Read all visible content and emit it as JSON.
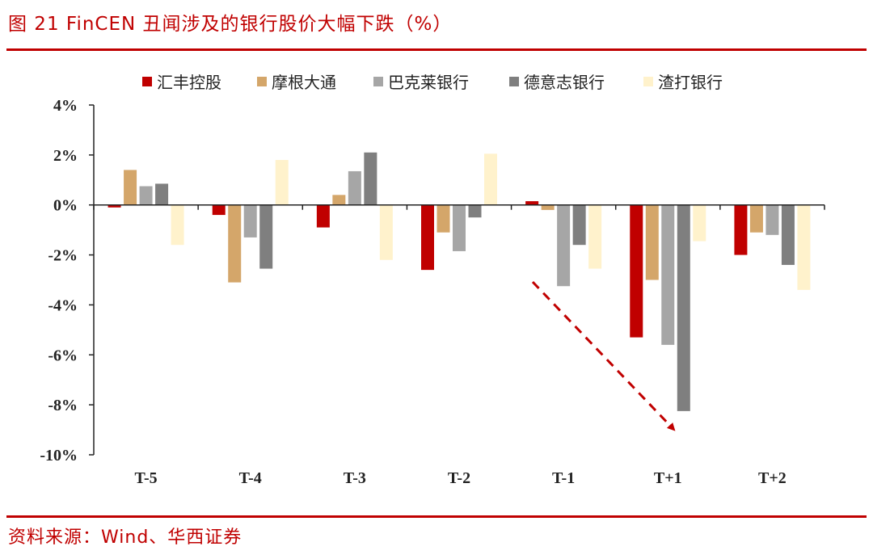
{
  "figure": {
    "title": "图 21  FinCEN 丑闻涉及的银行股价大幅下跌（%）",
    "source": "资料来源：Wind、华西证券"
  },
  "chart_data": {
    "type": "bar",
    "title": "FinCEN 丑闻涉及的银行股价大幅下跌（%）",
    "xlabel": "",
    "ylabel": "",
    "ylim": [
      -10,
      4
    ],
    "yticks": [
      4,
      2,
      0,
      -2,
      -4,
      -6,
      -8,
      -10
    ],
    "ytick_labels": [
      "4%",
      "2%",
      "0%",
      "-2%",
      "-4%",
      "-6%",
      "-8%",
      "-10%"
    ],
    "categories": [
      "T-5",
      "T-4",
      "T-3",
      "T-2",
      "T-1",
      "T+1",
      "T+2"
    ],
    "legend_position": "top",
    "series": [
      {
        "name": "汇丰控股",
        "color": "#c00000",
        "values": [
          -0.1,
          -0.4,
          -0.9,
          -2.6,
          0.15,
          -5.3,
          -2.0
        ]
      },
      {
        "name": "摩根大通",
        "color": "#d4a66a",
        "values": [
          1.4,
          -3.1,
          0.4,
          -1.1,
          -0.2,
          -3.0,
          -1.1
        ]
      },
      {
        "name": "巴克莱银行",
        "color": "#a6a6a6",
        "values": [
          0.75,
          -1.3,
          1.35,
          -1.85,
          -3.25,
          -5.6,
          -1.2
        ]
      },
      {
        "name": "德意志银行",
        "color": "#7f7f7f",
        "values": [
          0.85,
          -2.55,
          2.1,
          -0.5,
          -1.6,
          -8.25,
          -2.4
        ]
      },
      {
        "name": "渣打银行",
        "color": "#fff2cc",
        "values": [
          -1.6,
          1.8,
          -2.2,
          2.05,
          -2.55,
          -1.45,
          -3.4
        ]
      }
    ],
    "annotation": {
      "type": "arrow",
      "description": "dashed red arrow",
      "color": "#c00000"
    }
  }
}
